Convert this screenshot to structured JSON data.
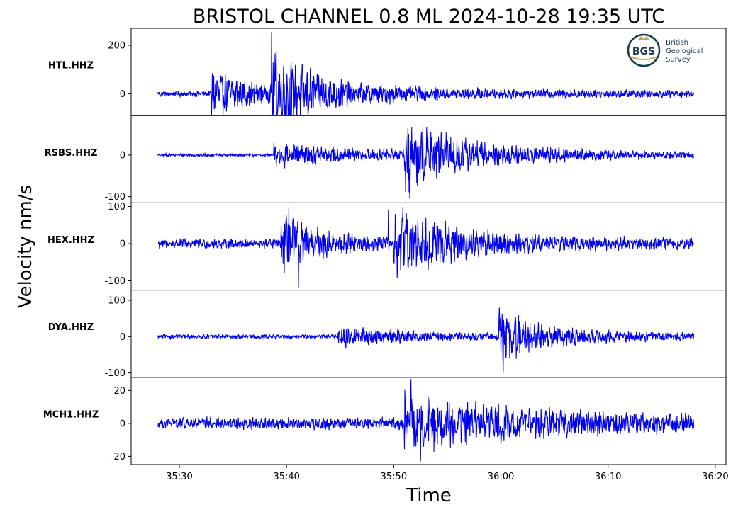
{
  "chart_data": {
    "type": "line",
    "title": "BRISTOL CHANNEL 0.8 ML   2024-10-28 19:35 UTC",
    "xlabel": "Time",
    "ylabel": "Velocity nm/s",
    "x_range_seconds": [
      25.5,
      81.0
    ],
    "x_ticks": [
      {
        "label": "35:30",
        "t": 30
      },
      {
        "label": "35:40",
        "t": 40
      },
      {
        "label": "35:50",
        "t": 50
      },
      {
        "label": "36:00",
        "t": 60
      },
      {
        "label": "36:10",
        "t": 70
      },
      {
        "label": "36:20",
        "t": 80
      }
    ],
    "series_color": "#0000ee",
    "trace_start_t": 28.0,
    "trace_end_t": 78.0,
    "panels": [
      {
        "station": "HTL.HHZ",
        "ylim": [
          -90,
          270
        ],
        "yticks": [
          {
            "label": "0",
            "v": 0
          },
          {
            "label": "200",
            "v": 200
          }
        ],
        "noise": 12,
        "events": [
          {
            "t": 33.0,
            "amp": 95,
            "decay": 5.0
          },
          {
            "t": 38.6,
            "amp": 150,
            "decay": 3.0
          },
          {
            "t": 38.6,
            "amp": 40,
            "decay": 18.0
          }
        ],
        "extremes": [
          {
            "t": 33.0,
            "v": -88
          },
          {
            "t": 38.6,
            "v": 255
          }
        ]
      },
      {
        "station": "RSBS.HHZ",
        "ylim": [
          -115,
          95
        ],
        "yticks": [
          {
            "label": "-100",
            "v": -100
          },
          {
            "label": "0",
            "v": 0
          }
        ],
        "noise": 4,
        "events": [
          {
            "t": 38.8,
            "amp": 28,
            "decay": 12.0
          },
          {
            "t": 51.0,
            "amp": 68,
            "decay": 4.5
          },
          {
            "t": 51.0,
            "amp": 22,
            "decay": 16.0
          }
        ],
        "extremes": [
          {
            "t": 51.5,
            "v": 88
          },
          {
            "t": 51.5,
            "v": -105
          }
        ]
      },
      {
        "station": "HEX.HHZ",
        "ylim": [
          -125,
          110
        ],
        "yticks": [
          {
            "label": "-100",
            "v": -100
          },
          {
            "label": "0",
            "v": 0
          },
          {
            "label": "100",
            "v": 100
          }
        ],
        "noise": 14,
        "events": [
          {
            "t": 39.5,
            "amp": 78,
            "decay": 4.0
          },
          {
            "t": 50.0,
            "amp": 70,
            "decay": 5.0
          },
          {
            "t": 50.0,
            "amp": 22,
            "decay": 14.0
          }
        ],
        "extremes": [
          {
            "t": 40.2,
            "v": 98
          },
          {
            "t": 41.1,
            "v": -118
          },
          {
            "t": 49.5,
            "v": 92
          }
        ]
      },
      {
        "station": "DYA.HHZ",
        "ylim": [
          -112,
          128
        ],
        "yticks": [
          {
            "label": "-100",
            "v": -100
          },
          {
            "label": "0",
            "v": 0
          },
          {
            "label": "100",
            "v": 100
          }
        ],
        "noise": 6,
        "events": [
          {
            "t": 44.8,
            "amp": 28,
            "decay": 8.0
          },
          {
            "t": 59.8,
            "amp": 62,
            "decay": 3.5
          },
          {
            "t": 59.8,
            "amp": 18,
            "decay": 14.0
          }
        ],
        "extremes": [
          {
            "t": 60.2,
            "v": 125
          },
          {
            "t": 60.2,
            "v": -100
          }
        ]
      },
      {
        "station": "MCH1.HHZ",
        "ylim": [
          -25,
          28
        ],
        "yticks": [
          {
            "label": "-20",
            "v": -20
          },
          {
            "label": "0",
            "v": 0
          },
          {
            "label": "20",
            "v": 20
          }
        ],
        "noise": 4,
        "events": [
          {
            "t": 51.0,
            "amp": 12,
            "decay": 9.0
          },
          {
            "t": 51.0,
            "amp": 5,
            "decay": 30.0
          }
        ],
        "extremes": [
          {
            "t": 51.6,
            "v": 27
          },
          {
            "t": 52.5,
            "v": -23
          }
        ]
      }
    ]
  },
  "logo": {
    "monogram": "BGS",
    "lines": [
      "British",
      "Geological",
      "Survey"
    ]
  }
}
